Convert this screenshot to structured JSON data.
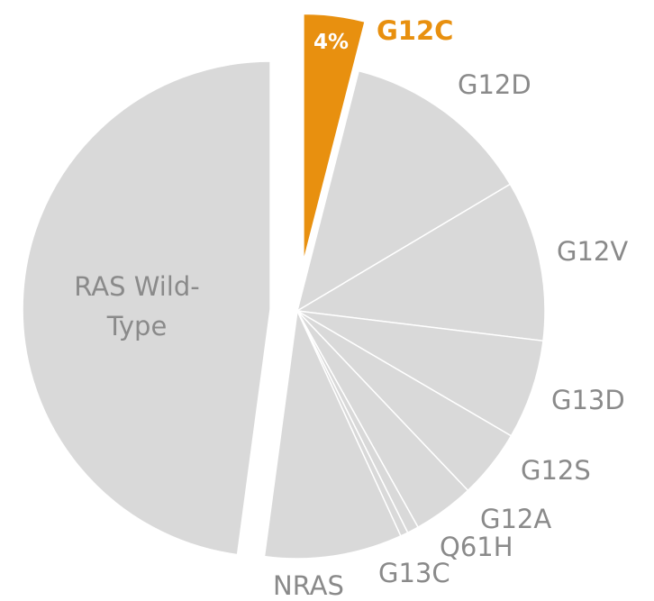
{
  "chart_data": {
    "type": "pie",
    "categories": [
      "G12C",
      "G12D",
      "G12V",
      "G13D",
      "G12S",
      "G12A",
      "Q61H",
      "G13C",
      "NRAS",
      "RAS Wild-Type"
    ],
    "values": [
      4,
      12.5,
      10.5,
      6.5,
      4.5,
      4,
      0.75,
      0.5,
      9,
      48
    ],
    "value_labels": [
      "4%",
      null,
      null,
      null,
      null,
      null,
      null,
      null,
      null,
      null
    ],
    "colors": [
      "#e8900f",
      "#d9d9d9",
      "#d9d9d9",
      "#d9d9d9",
      "#d9d9d9",
      "#d9d9d9",
      "#d9d9d9",
      "#d9d9d9",
      "#d9d9d9",
      "#d9d9d9"
    ]
  }
}
